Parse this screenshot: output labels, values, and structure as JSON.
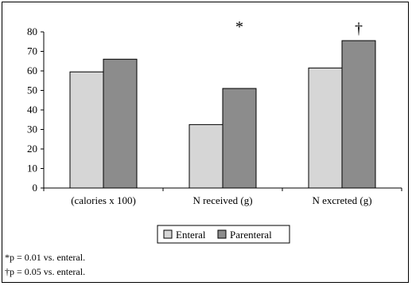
{
  "chart_data": {
    "type": "bar",
    "categories": [
      "(calories x 100)",
      "N received (g)",
      "N excreted (g)"
    ],
    "series": [
      {
        "name": "Enteral",
        "values": [
          59.5,
          32.5,
          61.5
        ],
        "color": "#d6d6d6"
      },
      {
        "name": "Parenteral",
        "values": [
          66,
          51,
          75.5
        ],
        "color": "#8c8c8c"
      }
    ],
    "ylim": [
      0,
      80
    ],
    "yticks": [
      0,
      10,
      20,
      30,
      40,
      50,
      60,
      70,
      80
    ],
    "legend_position": "bottom",
    "grid": false,
    "annotations": [
      {
        "category_index": 1,
        "text": "*"
      },
      {
        "category_index": 2,
        "text": "†"
      }
    ]
  },
  "footnotes": [
    "*p = 0.01 vs. enteral.",
    "†p = 0.05 vs. enteral."
  ]
}
